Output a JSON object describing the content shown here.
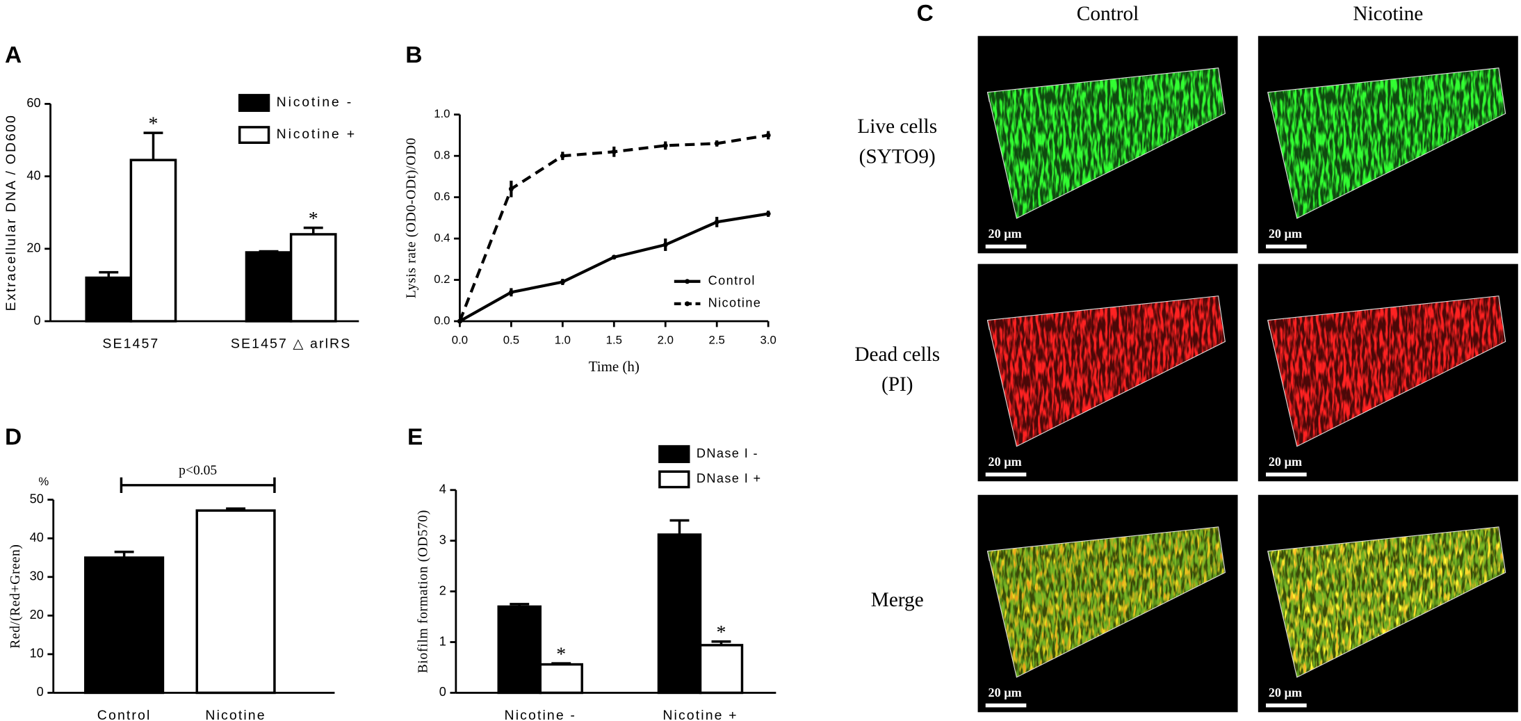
{
  "chart_data": [
    {
      "panel": "A",
      "type": "bar",
      "ylabel": "Extracellular DNA / OD600",
      "categories": [
        "SE1457",
        "SE1457 △ arlRS"
      ],
      "series": [
        {
          "name": "Nicotine -",
          "color": "#000000",
          "values": [
            12,
            19
          ],
          "errors": [
            1.5,
            0.3
          ]
        },
        {
          "name": "Nicotine +",
          "color": "#ffffff",
          "values": [
            44.5,
            24
          ],
          "errors": [
            7.5,
            1.8
          ],
          "markers": [
            "*",
            "*"
          ]
        }
      ],
      "ylim": [
        0,
        60
      ],
      "yticks": [
        0,
        20,
        40,
        60
      ],
      "legend": "upper right"
    },
    {
      "panel": "B",
      "type": "line",
      "ylabel": "Lysis rate (OD0-ODt)/OD0",
      "xlabel": "Time (h)",
      "x": [
        0,
        0.5,
        1,
        1.5,
        2,
        2.5,
        3
      ],
      "series": [
        {
          "name": "Control",
          "color": "#000000",
          "line_style": "solid",
          "values": [
            0,
            0.14,
            0.19,
            0.31,
            0.37,
            0.48,
            0.52
          ],
          "errors": [
            0,
            0.02,
            0.015,
            0.01,
            0.03,
            0.025,
            0.015
          ]
        },
        {
          "name": "Nicotine",
          "color": "#000000",
          "line_style": "dashed",
          "values": [
            0,
            0.64,
            0.8,
            0.82,
            0.85,
            0.86,
            0.9
          ],
          "errors": [
            0,
            0.04,
            0.02,
            0.025,
            0.02,
            0.015,
            0.02
          ]
        }
      ],
      "xlim": [
        0,
        3
      ],
      "xticks": [
        {
          "value": 0,
          "label": "0.0"
        },
        0.5,
        {
          "value": 1,
          "label": "1.0"
        },
        1.5,
        {
          "value": 2,
          "label": "2.0"
        },
        2.5,
        {
          "value": 3,
          "label": "3.0"
        }
      ],
      "ylim": [
        0,
        1
      ],
      "yticks": [
        {
          "value": 0,
          "label": "0.0"
        },
        0.2,
        0.4,
        0.6,
        0.8,
        {
          "value": 1,
          "label": "1.0"
        }
      ],
      "legend": "lower right"
    },
    {
      "panel": "D",
      "type": "bar",
      "unit": "%",
      "ylabel": "Red/(Red+Green)",
      "categories": [
        "Control",
        "Nicotine"
      ],
      "values": [
        35,
        47.2
      ],
      "errors": [
        1.5,
        0.5
      ],
      "colors": [
        "#000000",
        "#ffffff"
      ],
      "ylim": [
        0,
        50
      ],
      "yticks": [
        0,
        10,
        20,
        30,
        40,
        50
      ],
      "annotation": "p<0.05"
    },
    {
      "panel": "E",
      "type": "bar",
      "ylabel": "Biofilm formation (OD570)",
      "categories": [
        "Nicotine -",
        "Nicotine +"
      ],
      "series": [
        {
          "name": "DNase I -",
          "color": "#000000",
          "values": [
            1.7,
            3.12
          ],
          "errors": [
            0.05,
            0.28
          ]
        },
        {
          "name": "DNase I +",
          "color": "#ffffff",
          "values": [
            0.56,
            0.94
          ],
          "errors": [
            0.02,
            0.07
          ],
          "markers": [
            "*",
            "*"
          ]
        }
      ],
      "ylim": [
        0,
        4
      ],
      "yticks": [
        0,
        1,
        2,
        3,
        4
      ],
      "legend": "upper right"
    }
  ],
  "panel_c": {
    "panel": "C",
    "columns": [
      "Control",
      "Nicotine"
    ],
    "rows": [
      [
        "Live cells",
        "(SYTO9)"
      ],
      [
        "Dead cells",
        "(PI)"
      ],
      [
        "Merge"
      ]
    ],
    "scale_bar": "20 µm"
  }
}
